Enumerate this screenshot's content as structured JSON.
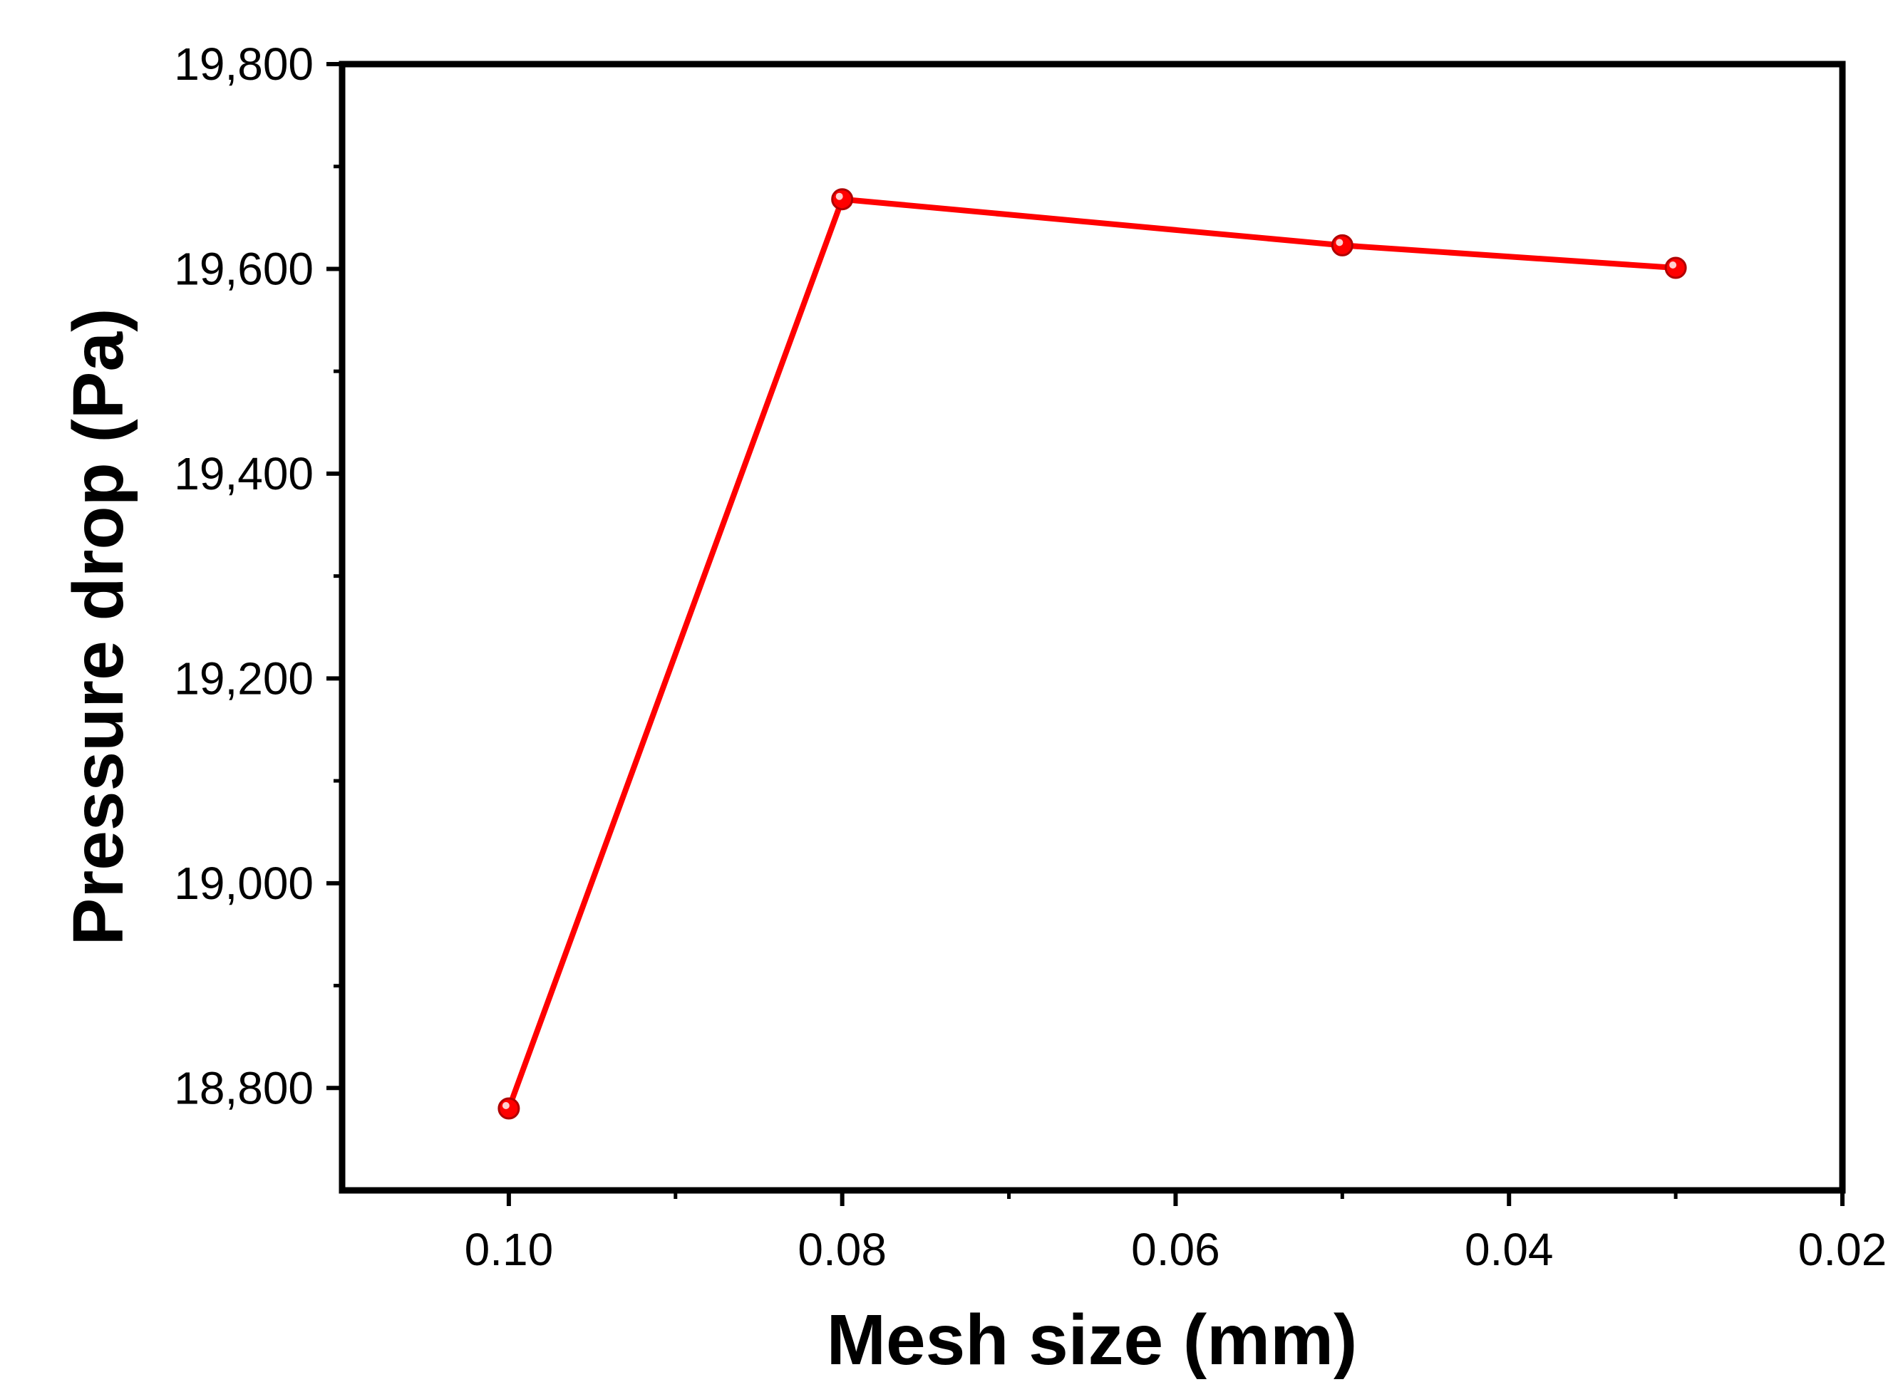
{
  "chart_data": {
    "type": "line",
    "xlabel": "Mesh size (mm)",
    "ylabel": "Pressure drop (Pa)",
    "xlim": [
      0.11,
      0.02
    ],
    "ylim": [
      18700,
      19800
    ],
    "x_axis_reversed": true,
    "xticks": [
      0.1,
      0.08,
      0.06,
      0.04,
      0.02
    ],
    "xtick_labels": [
      "0.10",
      "0.08",
      "0.06",
      "0.04",
      "0.02"
    ],
    "yticks": [
      18800,
      19000,
      19200,
      19400,
      19600,
      19800
    ],
    "ytick_labels": [
      "18,800",
      "19,000",
      "19,200",
      "19,400",
      "19,600",
      "19,800"
    ],
    "grid": false,
    "legend": "none",
    "series": [
      {
        "color": "#ff0000",
        "marker": "circle",
        "x": [
          0.1,
          0.08,
          0.05,
          0.03
        ],
        "y": [
          18780,
          19668,
          19623,
          19601
        ]
      }
    ]
  }
}
